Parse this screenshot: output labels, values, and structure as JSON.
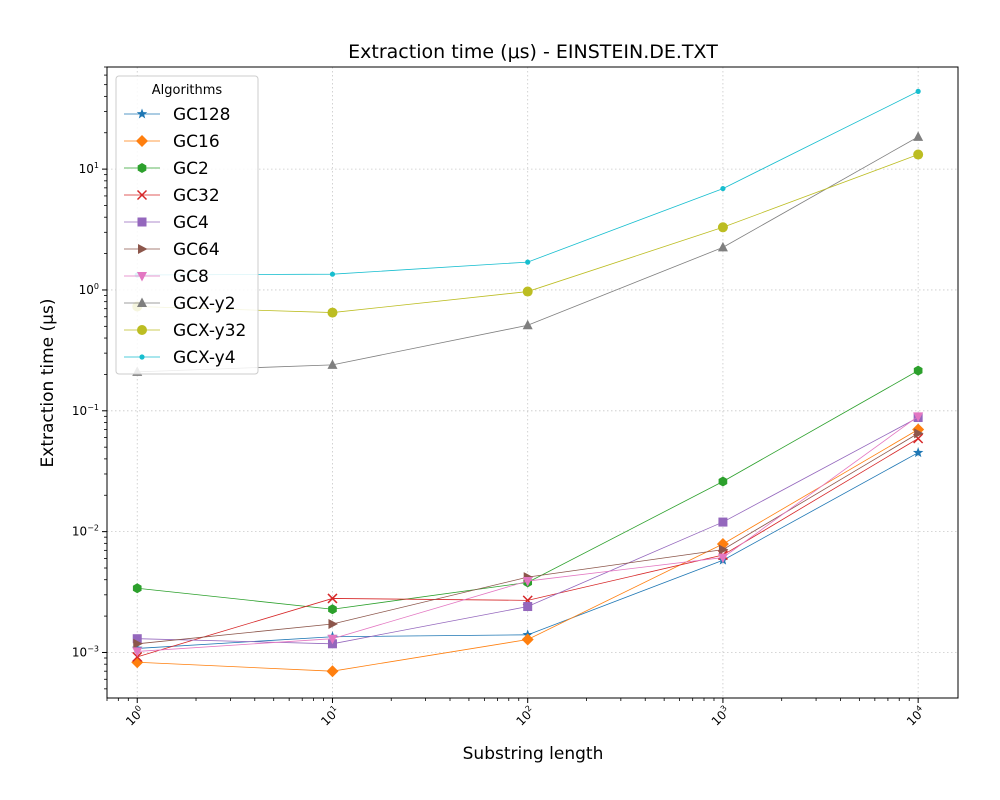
{
  "chart_data": {
    "type": "line",
    "title": "Extraction time (μs) - EINSTEIN.DE.TXT",
    "xlabel": "Substring length",
    "ylabel": "Extraction time (μs)",
    "xscale": "log",
    "yscale": "log",
    "x": [
      1,
      10,
      100,
      1000,
      10000
    ],
    "xlim": [
      0.7,
      16000
    ],
    "ylim": [
      0.00042,
      70
    ],
    "x_ticks": [
      {
        "value": 1,
        "base": "10",
        "exp": "0"
      },
      {
        "value": 10,
        "base": "10",
        "exp": "1"
      },
      {
        "value": 100,
        "base": "10",
        "exp": "2"
      },
      {
        "value": 1000,
        "base": "10",
        "exp": "3"
      },
      {
        "value": 10000,
        "base": "10",
        "exp": "4"
      }
    ],
    "y_ticks": [
      {
        "value": 0.001,
        "base": "10",
        "exp": "−3"
      },
      {
        "value": 0.01,
        "base": "10",
        "exp": "−2"
      },
      {
        "value": 0.1,
        "base": "10",
        "exp": "−1"
      },
      {
        "value": 1,
        "base": "10",
        "exp": "0"
      },
      {
        "value": 10,
        "base": "10",
        "exp": "1"
      }
    ],
    "grid": true,
    "legend_title": "Algorithms",
    "legend_position": "top-left",
    "series": [
      {
        "name": "GC128",
        "color": "#1f77b4",
        "marker": "star",
        "values": [
          0.00108,
          0.00135,
          0.0014,
          0.0058,
          0.045
        ]
      },
      {
        "name": "GC16",
        "color": "#ff7f0e",
        "marker": "diamond",
        "values": [
          0.00083,
          0.0007,
          0.00128,
          0.0079,
          0.07
        ]
      },
      {
        "name": "GC2",
        "color": "#2ca02c",
        "marker": "hexagon",
        "values": [
          0.0034,
          0.00228,
          0.0038,
          0.026,
          0.215
        ]
      },
      {
        "name": "GC32",
        "color": "#d62728",
        "marker": "x",
        "values": [
          0.00092,
          0.0028,
          0.0027,
          0.0064,
          0.059
        ]
      },
      {
        "name": "GC4",
        "color": "#9467bd",
        "marker": "square",
        "values": [
          0.0013,
          0.00118,
          0.0024,
          0.012,
          0.088
        ]
      },
      {
        "name": "GC64",
        "color": "#8c564b",
        "marker": "triangle-right",
        "values": [
          0.00118,
          0.00172,
          0.0042,
          0.0071,
          0.065
        ]
      },
      {
        "name": "GC8",
        "color": "#e377c2",
        "marker": "triangle-down",
        "values": [
          0.00102,
          0.0013,
          0.0039,
          0.0061,
          0.09
        ]
      },
      {
        "name": "GCX-y2",
        "color": "#7f7f7f",
        "marker": "triangle-up",
        "values": [
          0.21,
          0.24,
          0.51,
          2.25,
          18.5
        ]
      },
      {
        "name": "GCX-y32",
        "color": "#bcbd22",
        "marker": "circle",
        "values": [
          0.73,
          0.65,
          0.97,
          3.3,
          13.2
        ]
      },
      {
        "name": "GCX-y4",
        "color": "#17becf",
        "marker": "point",
        "values": [
          1.33,
          1.35,
          1.7,
          6.9,
          44
        ]
      }
    ]
  }
}
